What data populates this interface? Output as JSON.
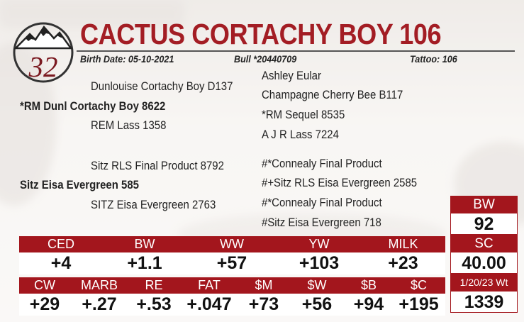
{
  "lot_number": "32",
  "title": "CACTUS CORTACHY BOY 106",
  "birth_date": "Birth Date: 05-10-2021",
  "registration": "Bull *20440709",
  "tattoo": "Tattoo: 106",
  "pedigree": {
    "sire": "*RM Dunl Cortachy Boy 8622",
    "sire_sire": "Dunlouise Cortachy Boy D137",
    "sire_dam": "REM Lass 1358",
    "sire_sire_sire": "Ashley Eular",
    "sire_sire_dam": "Champagne Cherry Bee B117",
    "sire_dam_sire": "*RM Sequel 8535",
    "sire_dam_dam": "A J R Lass 7224",
    "dam": "Sitz Eisa Evergreen 585",
    "dam_sire": "Sitz RLS Final Product 8792",
    "dam_dam": "SITZ Eisa Evergreen 2763",
    "dam_sire_sire": "#*Connealy Final Product",
    "dam_sire_dam": "#+Sitz RLS Eisa Evergreen 2585",
    "dam_dam_sire": "#*Connealy Final Product",
    "dam_dam_dam": "#Sitz Eisa Evergreen 718"
  },
  "epd_row1": {
    "labels": [
      "CED",
      "BW",
      "WW",
      "YW",
      "MILK"
    ],
    "values": [
      "+4",
      "+1.1",
      "+57",
      "+103",
      "+23"
    ]
  },
  "epd_row2": {
    "labels": [
      "CW",
      "MARB",
      "RE",
      "FAT",
      "$M",
      "$W",
      "$B",
      "$C"
    ],
    "values": [
      "+29",
      "+.27",
      "+.53",
      "+.047",
      "+73",
      "+56",
      "+94",
      "+195"
    ]
  },
  "stats": [
    {
      "label": "BW",
      "value": "92"
    },
    {
      "label": "SC",
      "value": "40.00"
    },
    {
      "label": "1/20/23 Wt",
      "value": "1339"
    }
  ],
  "colors": {
    "accent": "#a3161d",
    "title": "#a31d24",
    "lot": "#7b1a21"
  }
}
